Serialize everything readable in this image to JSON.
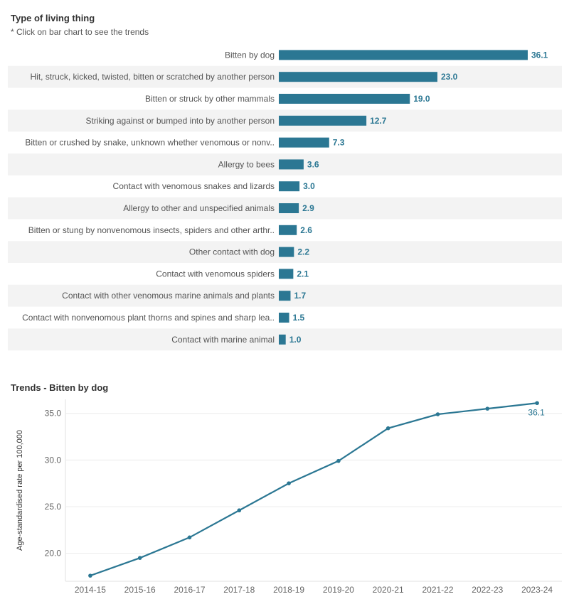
{
  "bar_section": {
    "title": "Type of living thing",
    "subtitle": "* Click on bar chart to see the trends"
  },
  "line_section": {
    "title": "Trends - Bitten by dog"
  },
  "colors": {
    "bar": "#2b7793",
    "line": "#2b7793",
    "band": "#f3f3f3",
    "grid": "#ececec"
  },
  "chart_data": [
    {
      "type": "bar",
      "orientation": "horizontal",
      "categories": [
        "Bitten by dog",
        "Hit, struck, kicked, twisted, bitten or scratched by another person",
        "Bitten or struck by other mammals",
        "Striking against or bumped into by another person",
        "Bitten or crushed by snake, unknown whether venomous or nonv..",
        "Allergy to bees",
        "Contact with venomous snakes and lizards",
        "Allergy to other and unspecified animals",
        "Bitten or stung by nonvenomous insects, spiders and other arthr..",
        "Other contact with dog",
        "Contact with venomous spiders",
        "Contact with other venomous marine animals and plants",
        "Contact with nonvenomous plant thorns and spines and sharp lea..",
        "Contact with marine animal"
      ],
      "values": [
        36.1,
        23.0,
        19.0,
        12.7,
        7.3,
        3.6,
        3.0,
        2.9,
        2.6,
        2.2,
        2.1,
        1.7,
        1.5,
        1.0
      ],
      "value_labels": [
        "36.1",
        "23.0",
        "19.0",
        "12.7",
        "7.3",
        "3.6",
        "3.0",
        "2.9",
        "2.6",
        "2.2",
        "2.1",
        "1.7",
        "1.5",
        "1.0"
      ],
      "xlim": [
        0,
        36.1
      ]
    },
    {
      "type": "line",
      "x": [
        "2014-15",
        "2015-16",
        "2016-17",
        "2017-18",
        "2018-19",
        "2019-20",
        "2020-21",
        "2021-22",
        "2022-23",
        "2023-24"
      ],
      "values": [
        17.6,
        19.5,
        21.7,
        24.6,
        27.5,
        29.9,
        33.4,
        34.9,
        35.5,
        36.1
      ],
      "end_label": "36.1",
      "ylabel": "Age-standardised rate per 100,000",
      "yticks": [
        "20.0",
        "25.0",
        "30.0",
        "35.0"
      ],
      "ylim": [
        17.0,
        36.5
      ],
      "grid": true
    }
  ]
}
